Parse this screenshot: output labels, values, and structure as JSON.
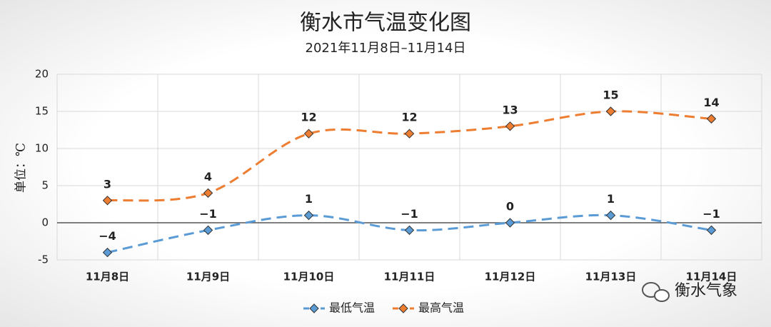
{
  "chart_data": {
    "type": "line",
    "title": "衡水市气温变化图",
    "subtitle": "2021年11月8日–11月14日",
    "y_label": "单位：℃",
    "categories": [
      "11月8日",
      "11月9日",
      "11月10日",
      "11月11日",
      "11月12日",
      "11月13日",
      "11月14日"
    ],
    "series": [
      {
        "name": "最低气温",
        "color": "#5b9bd5",
        "values": [
          -4,
          -1,
          1,
          -1,
          0,
          1,
          -1
        ],
        "value_labels": [
          "−4",
          "−1",
          "1",
          "−1",
          "0",
          "1",
          "−1"
        ]
      },
      {
        "name": "最高气温",
        "color": "#ed7d31",
        "values": [
          3,
          4,
          12,
          12,
          13,
          15,
          14
        ]
      }
    ],
    "ylim": [
      -5,
      20
    ],
    "yticks": [
      -5,
      0,
      5,
      10,
      15,
      20
    ],
    "grid": true,
    "smooth": true,
    "dashed": true,
    "legend": "bottom",
    "watermark": "衡水气象"
  }
}
